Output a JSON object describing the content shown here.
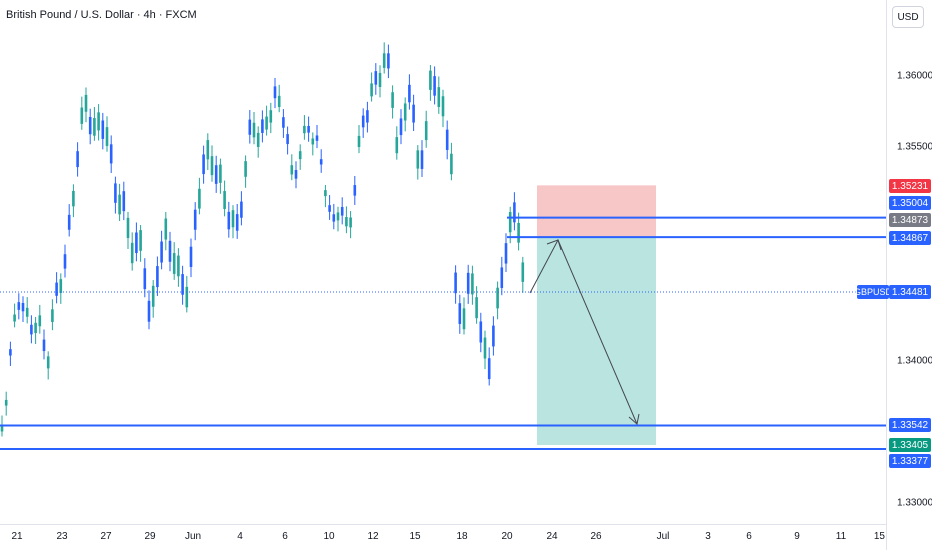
{
  "header": {
    "title": "British Pound / U.S. Dollar · 4h · FXCM"
  },
  "price_axis": {
    "currency": "USD",
    "labels": [
      "1.36000",
      "1.35500",
      "1.34000",
      "1.33000"
    ],
    "tags": [
      {
        "text": "1.35231",
        "color": "#f23645"
      },
      {
        "text": "1.35004",
        "color": "#2962ff"
      },
      {
        "text": "1.34873",
        "color": "#787b86"
      },
      {
        "text": "1.34867",
        "color": "#2962ff"
      },
      {
        "text": "1.34481",
        "color": "#2962ff"
      },
      {
        "text": "1.33542",
        "color": "#2962ff"
      },
      {
        "text": "1.33405",
        "color": "#089981"
      },
      {
        "text": "1.33377",
        "color": "#2962ff"
      }
    ],
    "symbol": "GBPUSD"
  },
  "time_axis": {
    "labels": [
      "21",
      "23",
      "27",
      "29",
      "Jun",
      "4",
      "6",
      "10",
      "12",
      "15",
      "18",
      "20",
      "24",
      "26",
      "Jul",
      "3",
      "6",
      "9",
      "11",
      "15"
    ]
  },
  "chart": {
    "colors": {
      "up": "#26a69a",
      "down": "#2962ff",
      "risk": "#f7c6c6",
      "reward": "#b9e4df",
      "line": "#2962ff",
      "arrow": "#434651"
    },
    "levels": {
      "resistance_high": 1.35004,
      "resistance_low": 1.34867,
      "support_high": 1.33542,
      "support_low": 1.33377,
      "current": 1.34481
    },
    "position": {
      "stop": 1.35231,
      "entry": 1.34867,
      "target": 1.33405
    }
  }
}
